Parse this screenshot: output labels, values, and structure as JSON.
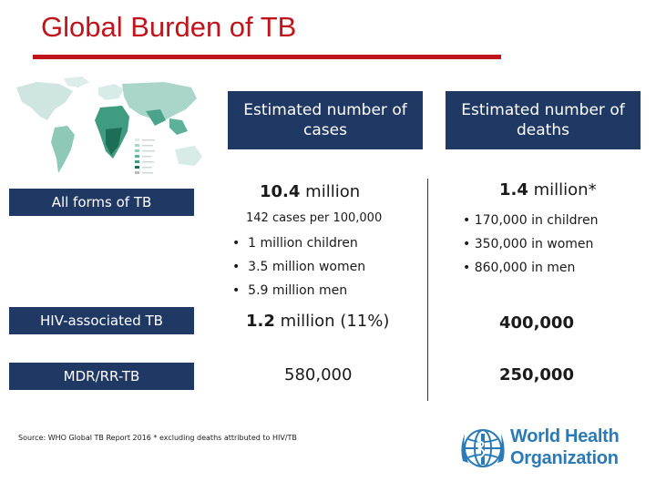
{
  "title": "Global Burden of TB",
  "columns": {
    "cases": "Estimated number of cases",
    "deaths": "Estimated number of deaths"
  },
  "rows": {
    "all_forms": {
      "label": "All forms of TB",
      "cases_value": "10.4",
      "cases_unit": "million",
      "cases_rate": "142 cases per 100,000",
      "cases_breakdown": [
        "1 million children",
        "3.5 million women",
        "5.9 million men"
      ],
      "deaths_value": "1.4",
      "deaths_unit": "million*",
      "deaths_breakdown": [
        "170,000 in children",
        "350,000 in women",
        "860,000 in men"
      ]
    },
    "hiv": {
      "label": "HIV-associated TB",
      "cases_value": "1.2",
      "cases_unit": "million (11%)",
      "deaths": "400,000"
    },
    "mdr": {
      "label": "MDR/RR-TB",
      "cases": "580,000",
      "deaths": "250,000"
    }
  },
  "bullet_glyph": "•",
  "source": "Source: WHO Global TB Report 2016 * excluding deaths attributed to HIV/TB",
  "logo": {
    "line1": "World Health",
    "line2": "Organization",
    "icon": "who-emblem-icon",
    "color": "#2a7ab8"
  },
  "colors": {
    "accent_red": "#c0141c",
    "header_navy": "#1f3864"
  }
}
